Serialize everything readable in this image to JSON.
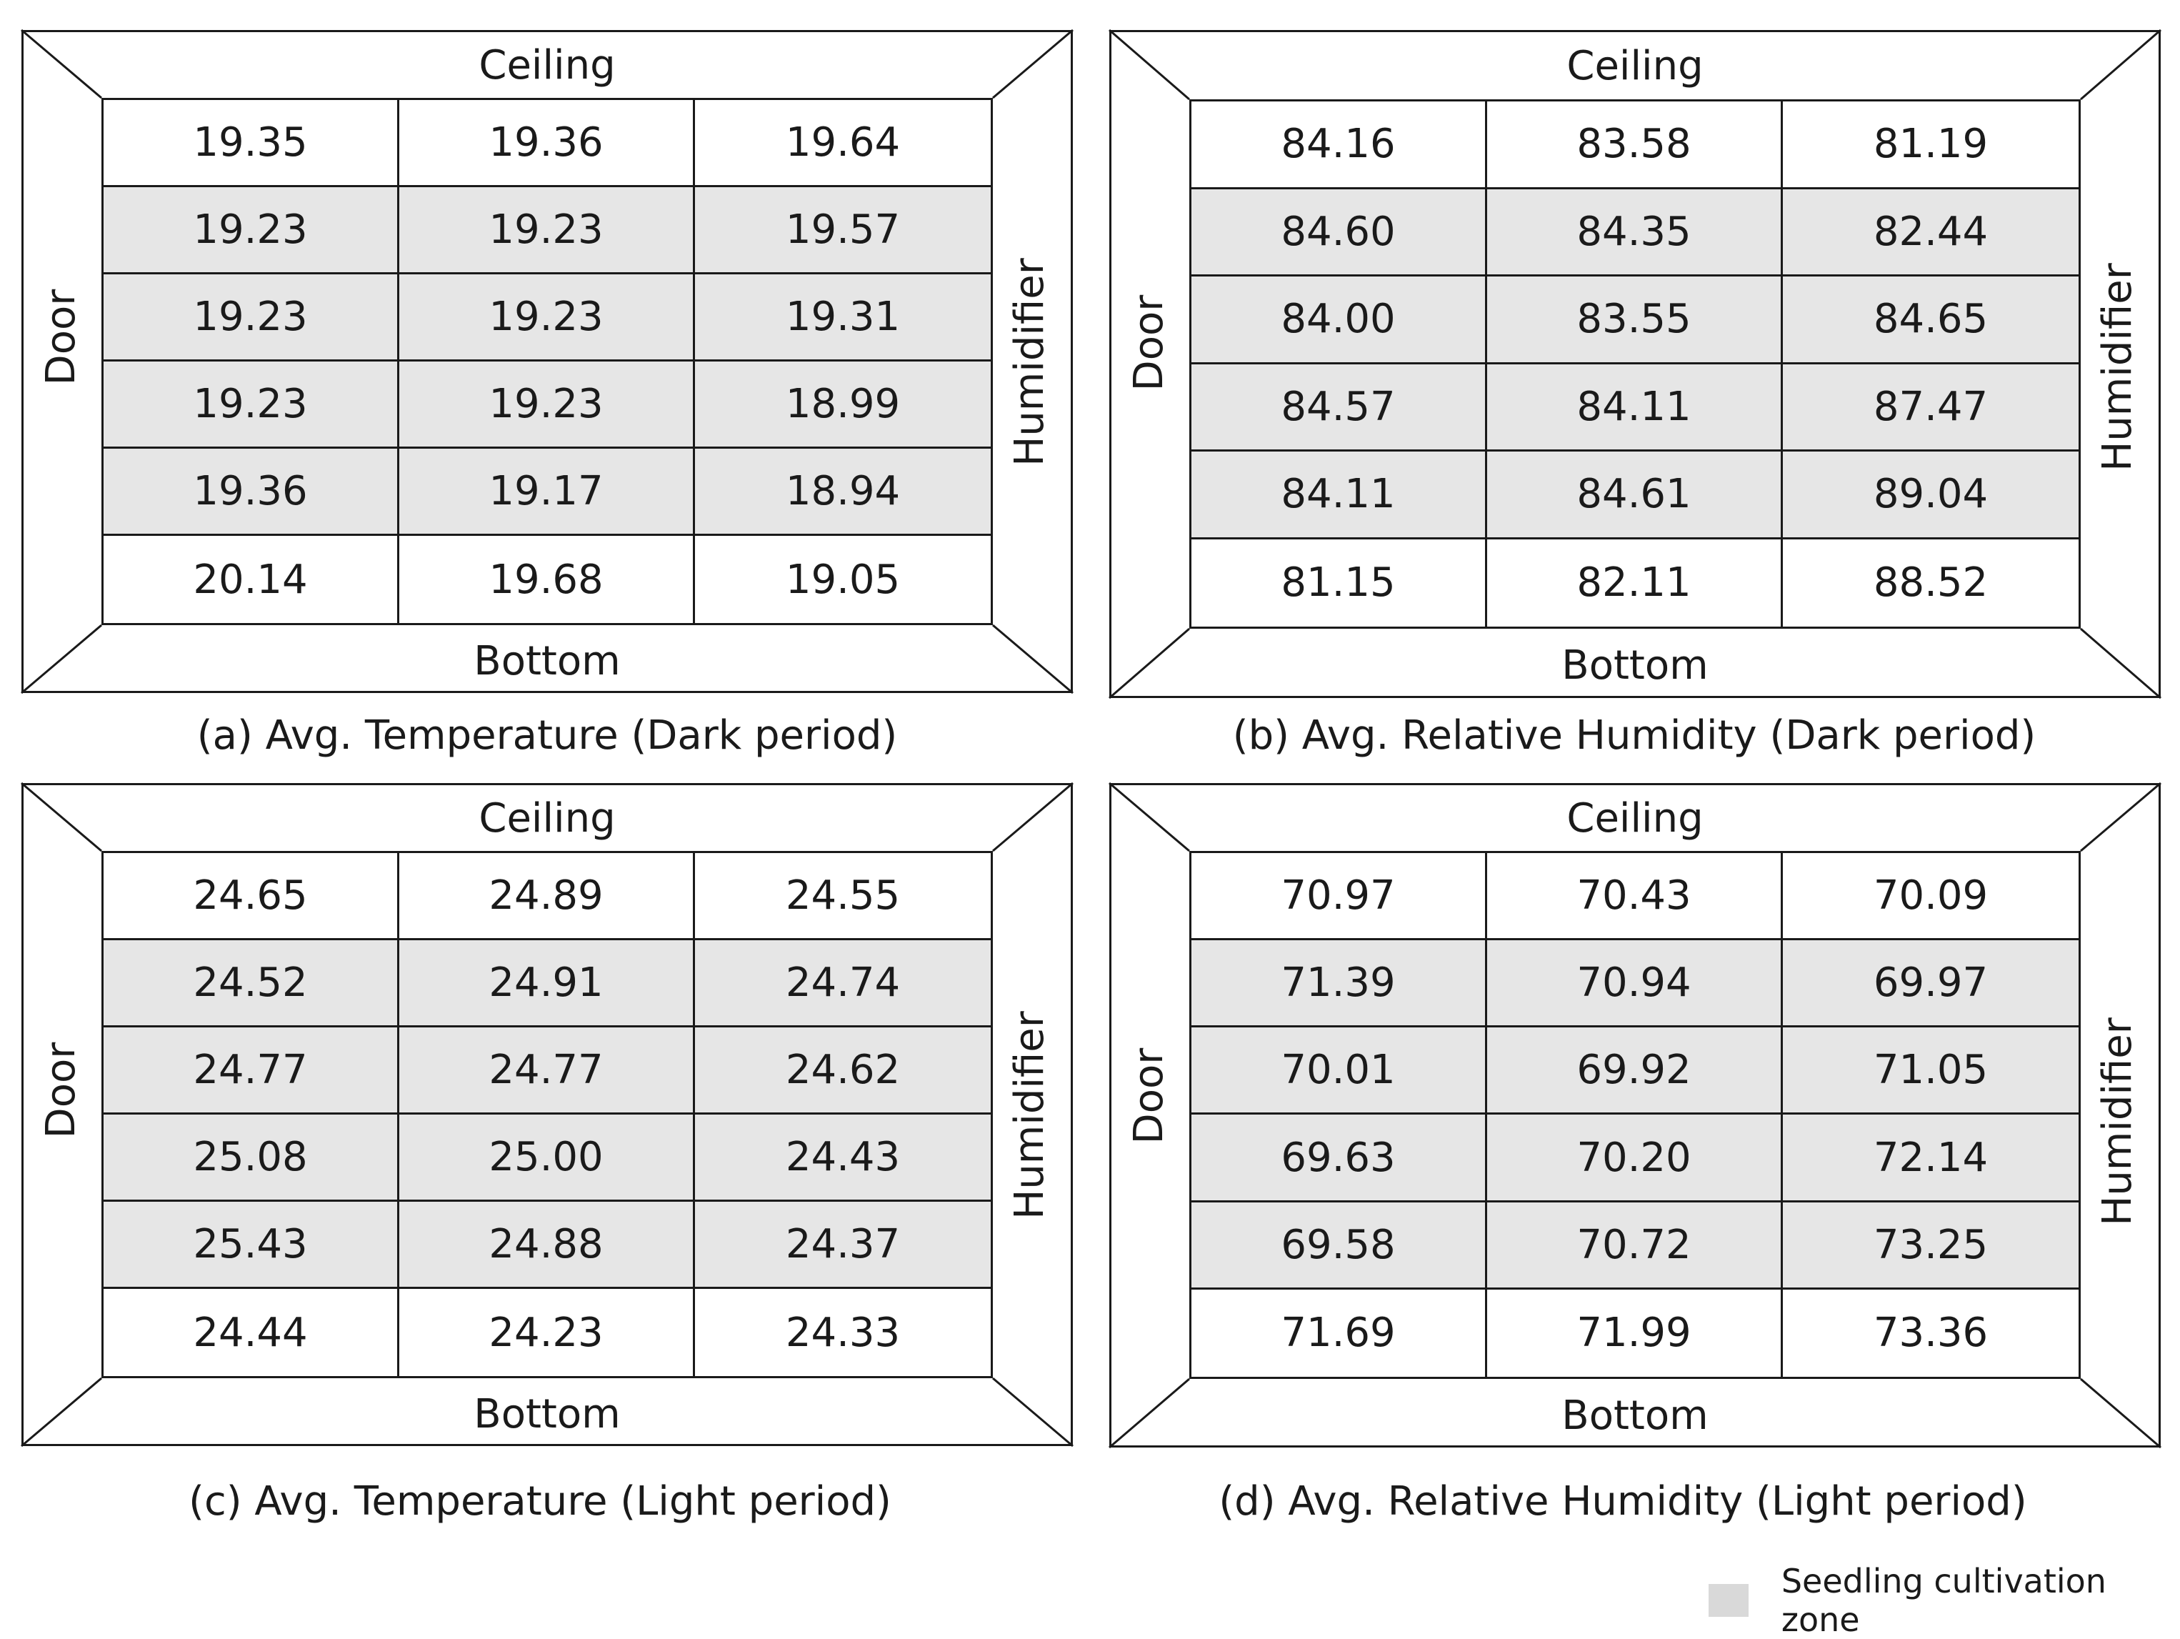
{
  "panels": [
    {
      "labels": {
        "top": "Ceiling",
        "bottom": "Bottom",
        "left": "Door",
        "right": "Humidifier"
      },
      "caption": "(a) Avg. Temperature (Dark period)",
      "rows": [
        [
          "19.35",
          "19.36",
          "19.64"
        ],
        [
          "19.23",
          "19.23",
          "19.57"
        ],
        [
          "19.23",
          "19.23",
          "19.31"
        ],
        [
          "19.23",
          "19.23",
          "18.99"
        ],
        [
          "19.36",
          "19.17",
          "18.94"
        ],
        [
          "20.14",
          "19.68",
          "19.05"
        ]
      ]
    },
    {
      "labels": {
        "top": "Ceiling",
        "bottom": "Bottom",
        "left": "Door",
        "right": "Humidifier"
      },
      "caption": "(b) Avg. Relative Humidity (Dark period)",
      "rows": [
        [
          "84.16",
          "83.58",
          "81.19"
        ],
        [
          "84.60",
          "84.35",
          "82.44"
        ],
        [
          "84.00",
          "83.55",
          "84.65"
        ],
        [
          "84.57",
          "84.11",
          "87.47"
        ],
        [
          "84.11",
          "84.61",
          "89.04"
        ],
        [
          "81.15",
          "82.11",
          "88.52"
        ]
      ]
    },
    {
      "labels": {
        "top": "Ceiling",
        "bottom": "Bottom",
        "left": "Door",
        "right": "Humidifier"
      },
      "caption": "(c) Avg. Temperature (Light period)",
      "rows": [
        [
          "24.65",
          "24.89",
          "24.55"
        ],
        [
          "24.52",
          "24.91",
          "24.74"
        ],
        [
          "24.77",
          "24.77",
          "24.62"
        ],
        [
          "25.08",
          "25.00",
          "24.43"
        ],
        [
          "25.43",
          "24.88",
          "24.37"
        ],
        [
          "24.44",
          "24.23",
          "24.33"
        ]
      ]
    },
    {
      "labels": {
        "top": "Ceiling",
        "bottom": "Bottom",
        "left": "Door",
        "right": "Humidifier"
      },
      "caption": "(d) Avg. Relative Humidity (Light period)",
      "rows": [
        [
          "70.97",
          "70.43",
          "70.09"
        ],
        [
          "71.39",
          "70.94",
          "69.97"
        ],
        [
          "70.01",
          "69.92",
          "71.05"
        ],
        [
          "69.63",
          "70.20",
          "72.14"
        ],
        [
          "69.58",
          "70.72",
          "73.25"
        ],
        [
          "71.69",
          "71.99",
          "73.36"
        ]
      ]
    }
  ],
  "zone_rows": [
    1,
    2,
    3,
    4
  ],
  "legend": {
    "label": "Seedling cultivation zone",
    "swatch_color": "#d9d9d9"
  }
}
